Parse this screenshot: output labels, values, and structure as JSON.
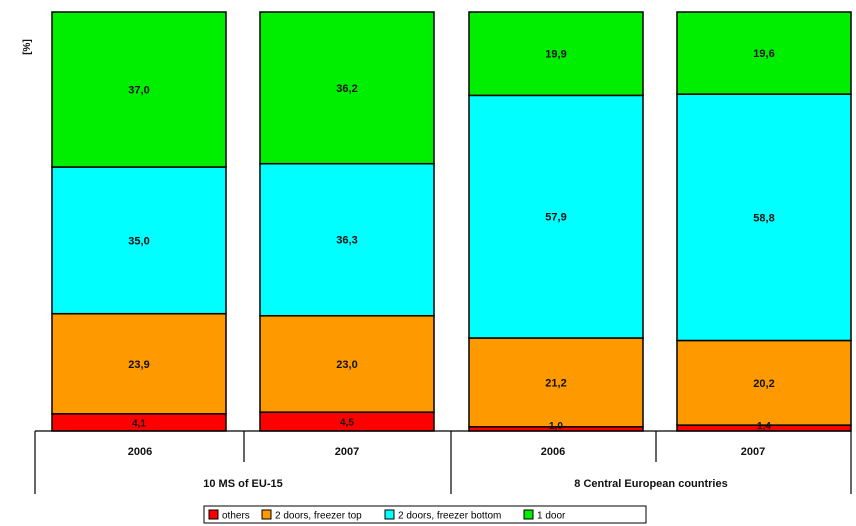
{
  "chart_data": {
    "type": "bar",
    "stacked": true,
    "ylabel": "[%]",
    "ylim": [
      0,
      100
    ],
    "grid": false,
    "legend_position": "bottom",
    "categories": [
      "2006",
      "2007",
      "2006",
      "2007"
    ],
    "groups": [
      {
        "label": "10 MS of EU-15",
        "categories": [
          "2006",
          "2007"
        ]
      },
      {
        "label": "8 Central European countries",
        "categories": [
          "2006",
          "2007"
        ]
      }
    ],
    "series": [
      {
        "name": "others",
        "color": "#ff0000",
        "values": [
          4.1,
          4.5,
          1.0,
          1.4
        ],
        "labels": [
          "4,1",
          "4,5",
          "1,0",
          "1,4"
        ]
      },
      {
        "name": "2 doors, freezer top",
        "color": "#ff9900",
        "values": [
          23.9,
          23.0,
          21.2,
          20.2
        ],
        "labels": [
          "23,9",
          "23,0",
          "21,2",
          "20,2"
        ]
      },
      {
        "name": "2 doors, freezer bottom",
        "color": "#00ffff",
        "values": [
          35.0,
          36.3,
          57.9,
          58.8
        ],
        "labels": [
          "35,0",
          "36,3",
          "57,9",
          "58,8"
        ]
      },
      {
        "name": "1 door",
        "color": "#00ee00",
        "values": [
          37.0,
          36.2,
          19.9,
          19.6
        ],
        "labels": [
          "37,0",
          "36,2",
          "19,9",
          "19,6"
        ]
      }
    ]
  }
}
